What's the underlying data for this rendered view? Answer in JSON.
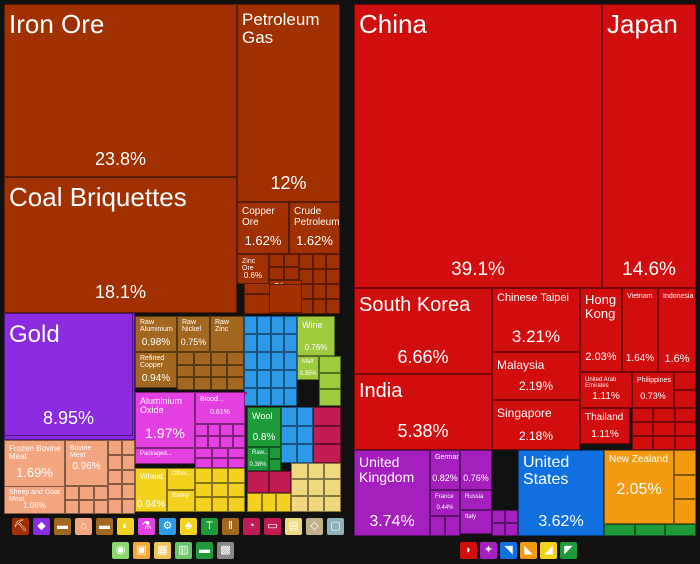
{
  "chart_data": [
    {
      "type": "treemap",
      "panel": "exports",
      "tiles": [
        {
          "label": "Iron Ore",
          "value": "23.8%",
          "color": "#a13000"
        },
        {
          "label": "Coal Briquettes",
          "value": "18.1%",
          "color": "#a13000"
        },
        {
          "label": "Petroleum Gas",
          "value": "12%",
          "color": "#a13000"
        },
        {
          "label": "Copper Ore",
          "value": "1.62%",
          "color": "#a13000"
        },
        {
          "label": "Crude Petroleum",
          "value": "1.62%",
          "color": "#a13000"
        },
        {
          "label": "Zinc Ore",
          "value": "0.6%",
          "color": "#a13000"
        },
        {
          "label": "Other...",
          "value": "0.56%",
          "color": "#a13000"
        },
        {
          "label": "Precious...",
          "value": "",
          "color": "#a13000"
        },
        {
          "label": "Gold",
          "value": "8.95%",
          "color": "#8a2be2"
        },
        {
          "label": "Raw Aluminium",
          "value": "0.98%",
          "color": "#a3681f"
        },
        {
          "label": "Raw Nickel",
          "value": "0.75%",
          "color": "#a3681f"
        },
        {
          "label": "Raw Zinc",
          "value": "",
          "color": "#a3681f"
        },
        {
          "label": "Refined Copper",
          "value": "0.94%",
          "color": "#a3681f"
        },
        {
          "label": "Aluminium Oxide",
          "value": "1.97%",
          "color": "#e43fe0"
        },
        {
          "label": "Blood...",
          "value": "0.61%",
          "color": "#e43fe0"
        },
        {
          "label": "Packaged...",
          "value": "",
          "color": "#e43fe0"
        },
        {
          "label": "Frozen Bovine Meat",
          "value": "1.69%",
          "color": "#f2a57f"
        },
        {
          "label": "Bovine Meat",
          "value": "0.96%",
          "color": "#f2a57f"
        },
        {
          "label": "Sheep and Goat Meat",
          "value": "1.08%",
          "color": "#f2a57f"
        },
        {
          "label": "Wheat",
          "value": "0.94%",
          "color": "#f3d21e"
        },
        {
          "label": "Other...",
          "value": "",
          "color": "#f3d21e"
        },
        {
          "label": "Barley",
          "value": "",
          "color": "#f3d21e"
        },
        {
          "label": "Wine",
          "value": "0.76%",
          "color": "#9ccb3d"
        },
        {
          "label": "Malt",
          "value": "0.35%",
          "color": "#9ccb3d"
        },
        {
          "label": "Wool",
          "value": "0.8%",
          "color": "#1d9b3a"
        },
        {
          "label": "Raw...",
          "value": "0.38%",
          "color": "#1d9b3a"
        }
      ]
    },
    {
      "type": "treemap",
      "panel": "destinations",
      "tiles": [
        {
          "label": "China",
          "value": "39.1%",
          "color": "#d20d0d"
        },
        {
          "label": "Japan",
          "value": "14.6%",
          "color": "#d20d0d"
        },
        {
          "label": "South Korea",
          "value": "6.66%",
          "color": "#d20d0d"
        },
        {
          "label": "Chinese Taipei",
          "value": "3.21%",
          "color": "#d20d0d"
        },
        {
          "label": "Hong Kong",
          "value": "2.03%",
          "color": "#d20d0d"
        },
        {
          "label": "Vietnam",
          "value": "1.64%",
          "color": "#d20d0d"
        },
        {
          "label": "Indonesia",
          "value": "1.6%",
          "color": "#d20d0d"
        },
        {
          "label": "India",
          "value": "5.38%",
          "color": "#d20d0d"
        },
        {
          "label": "Malaysia",
          "value": "2.19%",
          "color": "#d20d0d"
        },
        {
          "label": "Singapore",
          "value": "2.18%",
          "color": "#d20d0d"
        },
        {
          "label": "United Arab Emirates",
          "value": "1.11%",
          "color": "#d20d0d"
        },
        {
          "label": "Philippines",
          "value": "0.73%",
          "color": "#d20d0d"
        },
        {
          "label": "Thailand",
          "value": "1.11%",
          "color": "#d20d0d"
        },
        {
          "label": "United Kingdom",
          "value": "3.74%",
          "color": "#a51fbf"
        },
        {
          "label": "Germany",
          "value": "0.82%",
          "color": "#a51fbf"
        },
        {
          "label": "",
          "value": "0.76%",
          "color": "#a51fbf"
        },
        {
          "label": "France",
          "value": "0.44%",
          "color": "#a51fbf"
        },
        {
          "label": "Russia",
          "value": "",
          "color": "#a51fbf"
        },
        {
          "label": "Italy",
          "value": "",
          "color": "#a51fbf"
        },
        {
          "label": "United States",
          "value": "3.62%",
          "color": "#1070e0"
        },
        {
          "label": "New Zealand",
          "value": "2.05%",
          "color": "#f39a0f"
        }
      ]
    }
  ],
  "legend_icons": {
    "exports": [
      {
        "name": "mineral-products-icon",
        "color": "#a13000",
        "glyph": "⛏"
      },
      {
        "name": "precious-metals-icon",
        "color": "#8a2be2",
        "glyph": "◆"
      },
      {
        "name": "metals-icon",
        "color": "#a3681f",
        "glyph": "▬"
      },
      {
        "name": "animal-products-icon",
        "color": "#f2a57f",
        "glyph": "⌂"
      },
      {
        "name": "animal-hides-icon",
        "color": "#a3681f",
        "glyph": "▬"
      },
      {
        "name": "foodstuffs-icon",
        "color": "#f3d21e",
        "glyph": "◐"
      },
      {
        "name": "chemical-products-icon",
        "color": "#e43fe0",
        "glyph": "⚗"
      },
      {
        "name": "machines-icon",
        "color": "#2c9ae8",
        "glyph": "⚙"
      },
      {
        "name": "vegetable-products-icon",
        "color": "#f3d21e",
        "glyph": "♣"
      },
      {
        "name": "textiles-icon",
        "color": "#1d9b3a",
        "glyph": "T"
      },
      {
        "name": "transportation-icon",
        "color": "#a3681f",
        "glyph": "‖"
      },
      {
        "name": "instruments-icon",
        "color": "#c21a52",
        "glyph": "◔"
      },
      {
        "name": "weapons-icon",
        "color": "#c21a52",
        "glyph": "▭"
      },
      {
        "name": "paper-goods-icon",
        "color": "#f0d87e",
        "glyph": "▤"
      },
      {
        "name": "stone-and-glass-icon",
        "color": "#c0b18a",
        "glyph": "◇"
      },
      {
        "name": "miscellaneous-icon",
        "color": "#8fb1b8",
        "glyph": "▢"
      }
    ],
    "exports_row2": [
      {
        "name": "plastics-rubbers-icon",
        "color": "#8ad86b",
        "glyph": "◉"
      },
      {
        "name": "animal-vegetable-fats-icon",
        "color": "#f3a93a",
        "glyph": "▣"
      },
      {
        "name": "wood-products-icon",
        "color": "#f0c35a",
        "glyph": "▦"
      },
      {
        "name": "footwear-icon",
        "color": "#6bc56b",
        "glyph": "▥"
      },
      {
        "name": "art-antiques-icon",
        "color": "#1d9b3a",
        "glyph": "▬"
      },
      {
        "name": "unknown-icon",
        "color": "#888888",
        "glyph": "▩"
      }
    ],
    "destinations": [
      {
        "name": "asia-icon",
        "color": "#d20d0d",
        "glyph": "◗"
      },
      {
        "name": "europe-icon",
        "color": "#a51fbf",
        "glyph": "✦"
      },
      {
        "name": "north-america-icon",
        "color": "#1070e0",
        "glyph": "◥"
      },
      {
        "name": "africa-icon",
        "color": "#f39a0f",
        "glyph": "◣"
      },
      {
        "name": "south-america-icon",
        "color": "#f3d21e",
        "glyph": "◢"
      },
      {
        "name": "oceania-icon",
        "color": "#1d9b3a",
        "glyph": "◤"
      }
    ]
  }
}
